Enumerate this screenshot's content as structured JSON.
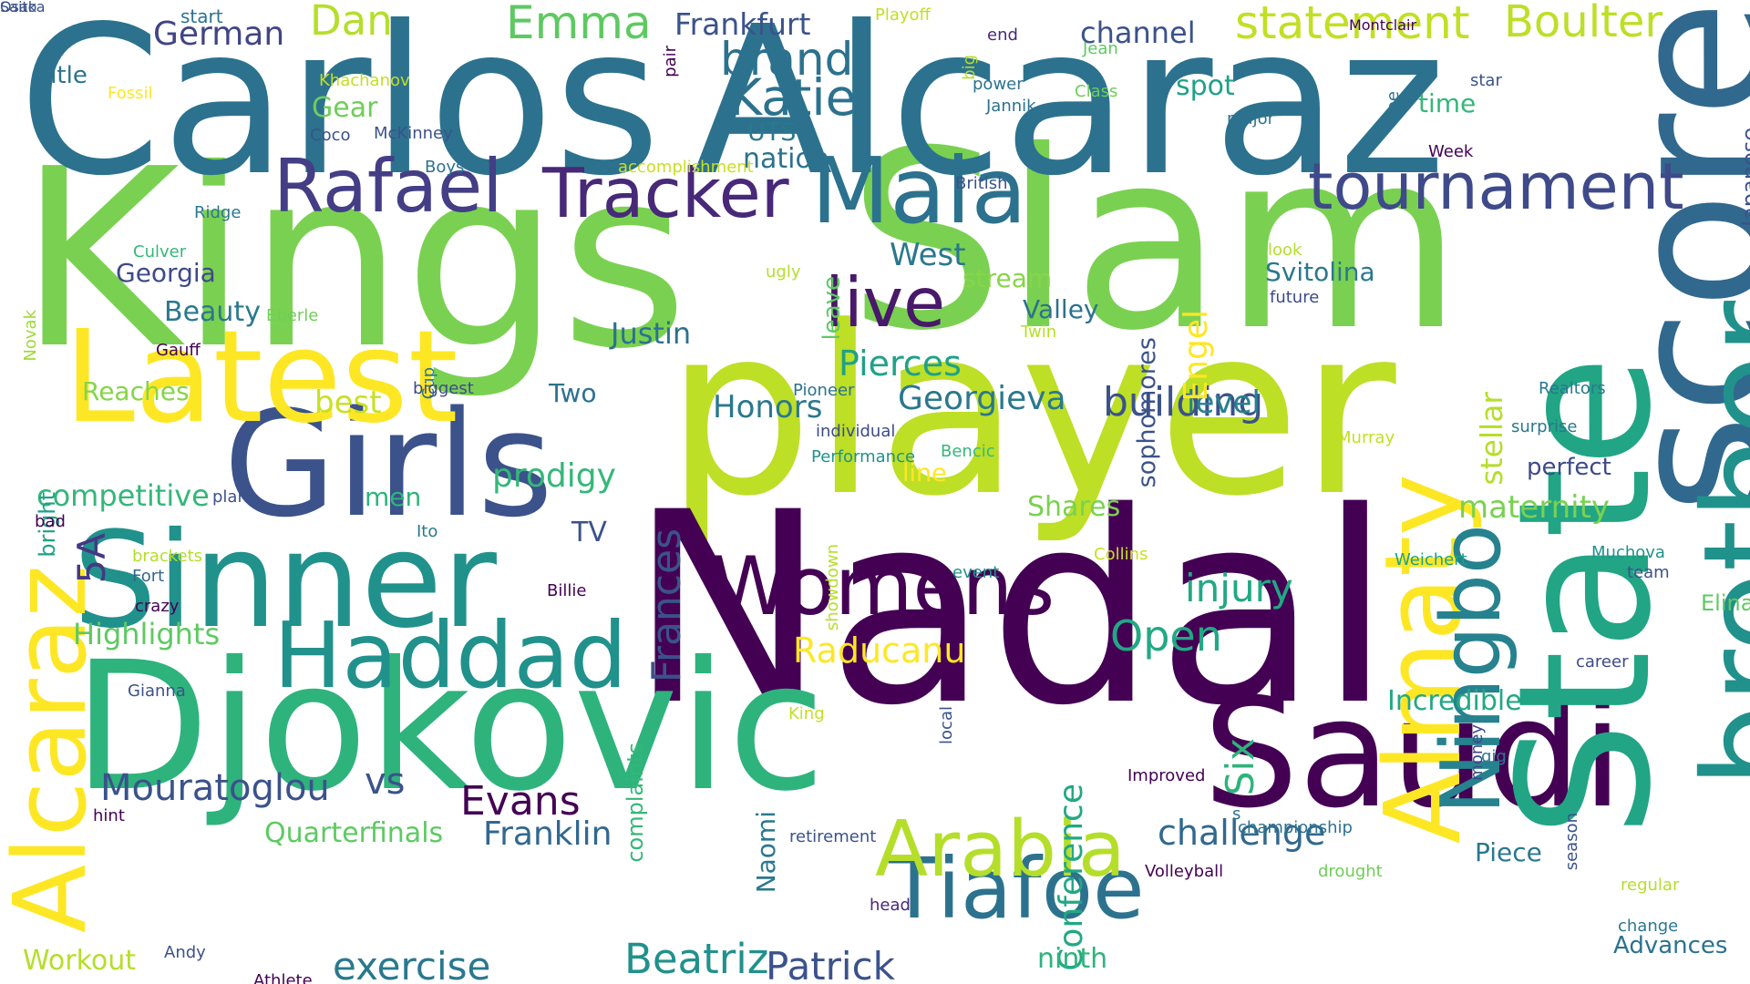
{
  "words": [
    {
      "text": "Kings",
      "color": "#7ad151"
    },
    {
      "text": "Slam",
      "color": "#7ad151"
    },
    {
      "text": "Carlos",
      "color": "#2c728e"
    },
    {
      "text": "Alcaraz",
      "color": "#2c728e"
    },
    {
      "text": "player",
      "color": "#bddf26"
    },
    {
      "text": "Nadal",
      "color": "#440154"
    },
    {
      "text": "Djokovic",
      "color": "#2eb37c"
    },
    {
      "text": "Girls",
      "color": "#3b528b"
    },
    {
      "text": "Sinner",
      "color": "#21918c"
    },
    {
      "text": "Latest",
      "color": "#fde725"
    },
    {
      "text": "Saudi",
      "color": "#440154"
    },
    {
      "text": "State",
      "color": "#21a585"
    },
    {
      "text": "score",
      "color": "#31688e"
    },
    {
      "text": "brother",
      "color": "#21918c"
    },
    {
      "text": "Maia",
      "color": "#2c728e"
    },
    {
      "text": "Womens",
      "color": "#440154"
    },
    {
      "text": "Haddad",
      "color": "#21918c"
    },
    {
      "text": "Tiafoe",
      "color": "#2c728e"
    },
    {
      "text": "Alcaraz",
      "color": "#fde725"
    },
    {
      "text": "Almaty",
      "color": "#fde725"
    },
    {
      "text": "Arabia",
      "color": "#b5de2b"
    },
    {
      "text": "Ningbo",
      "color": "#26828e"
    },
    {
      "text": "Tracker",
      "color": "#482878"
    },
    {
      "text": "Rafael",
      "color": "#433e85"
    },
    {
      "text": "tournament",
      "color": "#3e4a89"
    },
    {
      "text": "live",
      "color": "#48186a"
    },
    {
      "text": "statement",
      "color": "#c2df23"
    },
    {
      "text": "Boulter",
      "color": "#bddf26"
    },
    {
      "text": "Katie",
      "color": "#2c728e"
    },
    {
      "text": "brand",
      "color": "#2c728e"
    },
    {
      "text": "Emma",
      "color": "#5ec962"
    },
    {
      "text": "Dan",
      "color": "#b5de2b"
    },
    {
      "text": "German",
      "color": "#414487"
    },
    {
      "text": "Frankfurt",
      "color": "#3b528b"
    },
    {
      "text": "channel",
      "color": "#3b528b"
    },
    {
      "text": "Beatriz",
      "color": "#21918c"
    },
    {
      "text": "Patrick",
      "color": "#3b528b"
    },
    {
      "text": "exercise",
      "color": "#2a788e"
    },
    {
      "text": "Frances",
      "color": "#3b528b"
    },
    {
      "text": "5A",
      "color": "#443983"
    },
    {
      "text": "Mouratoglou",
      "color": "#3b528b"
    },
    {
      "text": "vs",
      "color": "#3b528b"
    },
    {
      "text": "Evans",
      "color": "#440154"
    },
    {
      "text": "Franklin",
      "color": "#31688e"
    },
    {
      "text": "Raducanu",
      "color": "#fde725"
    },
    {
      "text": "Open",
      "color": "#22a884"
    },
    {
      "text": "injury",
      "color": "#22a884"
    },
    {
      "text": "challenge",
      "color": "#31688e"
    },
    {
      "text": "building",
      "color": "#3b528b"
    },
    {
      "text": "Georgieva",
      "color": "#2a788e"
    },
    {
      "text": "Pierces",
      "color": "#1fa187"
    },
    {
      "text": "Justin",
      "color": "#2c728e"
    },
    {
      "text": "Honors",
      "color": "#2a788e"
    },
    {
      "text": "prodigy",
      "color": "#35b779"
    },
    {
      "text": "Highlights",
      "color": "#5ec962"
    },
    {
      "text": "competitive",
      "color": "#35b779"
    },
    {
      "text": "best",
      "color": "#c8e020"
    },
    {
      "text": "level",
      "color": "#26828e"
    },
    {
      "text": "stellar",
      "color": "#b5de2b"
    },
    {
      "text": "sophomores",
      "color": "#3b528b"
    },
    {
      "text": "Engel",
      "color": "#fde725"
    },
    {
      "text": "Svitolina",
      "color": "#2a788e"
    },
    {
      "text": "Conference",
      "color": "#22a884"
    },
    {
      "text": "Six",
      "color": "#2eb37c"
    },
    {
      "text": "Incredible",
      "color": "#22a884"
    },
    {
      "text": "Naomi",
      "color": "#2a788e"
    },
    {
      "text": "Quarterfinals",
      "color": "#5ec962"
    },
    {
      "text": "Workout",
      "color": "#b5de2b"
    },
    {
      "text": "ninth",
      "color": "#2eb37c"
    },
    {
      "text": "maternity",
      "color": "#7ad151"
    },
    {
      "text": "time",
      "color": "#35b779"
    },
    {
      "text": "spot",
      "color": "#1fa187"
    },
    {
      "text": "nation",
      "color": "#2c728e"
    },
    {
      "text": "UTS",
      "color": "#2a788e"
    },
    {
      "text": "Reaches",
      "color": "#86d549"
    },
    {
      "text": "Georgia",
      "color": "#3e4a89"
    },
    {
      "text": "Beauty",
      "color": "#2a788e"
    },
    {
      "text": "West",
      "color": "#2a788e"
    },
    {
      "text": "stream",
      "color": "#86d549"
    },
    {
      "text": "Valley",
      "color": "#2c728e"
    },
    {
      "text": "Shares",
      "color": "#7ad151"
    },
    {
      "text": "Two",
      "color": "#2c728e"
    },
    {
      "text": "TV",
      "color": "#3b528b"
    },
    {
      "text": "men",
      "color": "#2eb37c"
    },
    {
      "text": "line",
      "color": "#fde725"
    },
    {
      "text": "perfect",
      "color": "#3e4a89"
    },
    {
      "text": "Advances",
      "color": "#2c728e"
    },
    {
      "text": "leave",
      "color": "#5ec962"
    },
    {
      "text": "Piece",
      "color": "#2a788e"
    },
    {
      "text": "Elina",
      "color": "#5ec962"
    },
    {
      "text": "Gear",
      "color": "#6ece58"
    },
    {
      "text": "title",
      "color": "#2c728e"
    },
    {
      "text": "start",
      "color": "#2c728e"
    },
    {
      "text": "pair",
      "color": "#440154"
    },
    {
      "text": "Playoff",
      "color": "#c2df23"
    },
    {
      "text": "big",
      "color": "#b5de2b"
    },
    {
      "text": "end",
      "color": "#482878"
    },
    {
      "text": "Jean",
      "color": "#5ec962"
    },
    {
      "text": "star",
      "color": "#3b528b"
    },
    {
      "text": "Montclair",
      "color": "#440154"
    },
    {
      "text": "Japanese",
      "color": "#3b528b"
    },
    {
      "text": "Fossil",
      "color": "#fde725"
    },
    {
      "text": "Khachanov",
      "color": "#c2df23"
    },
    {
      "text": "Coco",
      "color": "#3b528b"
    },
    {
      "text": "McKinney",
      "color": "#3b528b"
    },
    {
      "text": "Novak",
      "color": "#a0da39"
    },
    {
      "text": "Boys",
      "color": "#2c728e"
    },
    {
      "text": "accomplishment",
      "color": "#c8e020"
    },
    {
      "text": "British",
      "color": "#3b528b"
    },
    {
      "text": "power",
      "color": "#2c728e"
    },
    {
      "text": "Class",
      "color": "#6ece58"
    },
    {
      "text": "Jannik",
      "color": "#2c728e"
    },
    {
      "text": "major",
      "color": "#2c728e"
    },
    {
      "text": "Joe",
      "color": "#2c728e"
    },
    {
      "text": "Week",
      "color": "#440154"
    },
    {
      "text": "Ridge",
      "color": "#2a788e"
    },
    {
      "text": "Culver",
      "color": "#35b779"
    },
    {
      "text": "Eberle",
      "color": "#6ece58"
    },
    {
      "text": "ugly",
      "color": "#b5de2b"
    },
    {
      "text": "Gauff",
      "color": "#440154"
    },
    {
      "text": "Cup",
      "color": "#2a788e"
    },
    {
      "text": "Twin",
      "color": "#b5de2b"
    },
    {
      "text": "look",
      "color": "#b5de2b"
    },
    {
      "text": "future",
      "color": "#3e4a89"
    },
    {
      "text": "biggest",
      "color": "#3e4a89"
    },
    {
      "text": "Pioneer",
      "color": "#2c728e"
    },
    {
      "text": "Realtors",
      "color": "#2a788e"
    },
    {
      "text": "surprise",
      "color": "#2a788e"
    },
    {
      "text": "bright",
      "color": "#1fa187"
    },
    {
      "text": "individual",
      "color": "#3e4a89"
    },
    {
      "text": "Performance",
      "color": "#21918c"
    },
    {
      "text": "Bencic",
      "color": "#35b779"
    },
    {
      "text": "Murray",
      "color": "#c2df23"
    },
    {
      "text": "plan",
      "color": "#3b528b"
    },
    {
      "text": "bad",
      "color": "#440154"
    },
    {
      "text": "Ito",
      "color": "#2a788e"
    },
    {
      "text": "showdown",
      "color": "#b5de2b"
    },
    {
      "text": "Collins",
      "color": "#c8e020"
    },
    {
      "text": "Weichert",
      "color": "#1fa187"
    },
    {
      "text": "brackets",
      "color": "#b5de2b"
    },
    {
      "text": "Fort",
      "color": "#31688e"
    },
    {
      "text": "event",
      "color": "#21918c"
    },
    {
      "text": "Muchova",
      "color": "#21918c"
    },
    {
      "text": "team",
      "color": "#3b528b"
    },
    {
      "text": "crazy",
      "color": "#440154"
    },
    {
      "text": "Billie",
      "color": "#440154"
    },
    {
      "text": "career",
      "color": "#3e4a89"
    },
    {
      "text": "Gianna",
      "color": "#3b528b"
    },
    {
      "text": "complaints",
      "color": "#35b779"
    },
    {
      "text": "King",
      "color": "#c2df23"
    },
    {
      "text": "local",
      "color": "#3b528b"
    },
    {
      "text": "money",
      "color": "#3e4a89"
    },
    {
      "text": "gig",
      "color": "#2a788e"
    },
    {
      "text": "Improved",
      "color": "#440154"
    },
    {
      "text": "championship",
      "color": "#2c728e"
    },
    {
      "text": "hint",
      "color": "#440154"
    },
    {
      "text": "s",
      "color": "#2c728e"
    },
    {
      "text": "retirement",
      "color": "#3b528b"
    },
    {
      "text": "season",
      "color": "#3b528b"
    },
    {
      "text": "regular",
      "color": "#b5de2b"
    },
    {
      "text": "Volleyball",
      "color": "#440154"
    },
    {
      "text": "drought",
      "color": "#6ece58"
    },
    {
      "text": "head",
      "color": "#482878"
    },
    {
      "text": "change",
      "color": "#2a788e"
    },
    {
      "text": "Andy",
      "color": "#3b528b"
    },
    {
      "text": "Athlete",
      "color": "#440154"
    },
    {
      "text": "Saito",
      "color": "#3b528b"
    },
    {
      "text": "Osaka",
      "color": "#3b528b"
    }
  ]
}
